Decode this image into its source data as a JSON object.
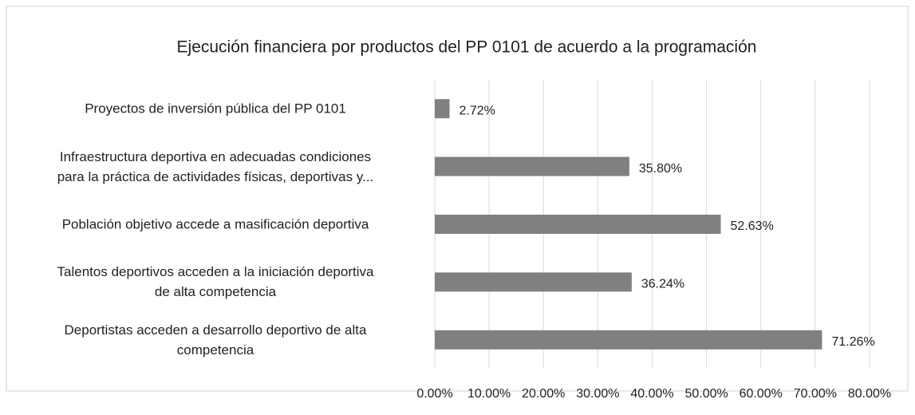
{
  "chart_data": {
    "type": "bar",
    "orientation": "horizontal",
    "title": "Ejecución financiera por productos del PP 0101 de acuerdo a la programación",
    "categories": [
      "Proyectos de inversión pública del PP 0101",
      "Infraestructura deportiva en adecuadas condiciones\npara la práctica de actividades físicas, deportivas y...",
      "Población objetivo accede a masificación deportiva",
      "Talentos deportivos acceden a la iniciación deportiva\nde alta competencia",
      "Deportistas acceden a desarrollo deportivo de alta\ncompetencia"
    ],
    "values": [
      2.72,
      35.8,
      52.63,
      36.24,
      71.26
    ],
    "value_labels": [
      "2.72%",
      "35.80%",
      "52.63%",
      "36.24%",
      "71.26%"
    ],
    "color": "#808080",
    "xlim": [
      0,
      80
    ],
    "xticks": [
      {
        "value": 0,
        "label": "0.00%"
      },
      {
        "value": 10,
        "label": "10.00%"
      },
      {
        "value": 20,
        "label": "20.00%"
      },
      {
        "value": 30,
        "label": "30.00%"
      },
      {
        "value": 40,
        "label": "40.00%"
      },
      {
        "value": 50,
        "label": "50.00%"
      },
      {
        "value": 60,
        "label": "60.00%"
      },
      {
        "value": 70,
        "label": "70.00%"
      },
      {
        "value": 80,
        "label": "80.00%"
      }
    ],
    "grid": true
  }
}
